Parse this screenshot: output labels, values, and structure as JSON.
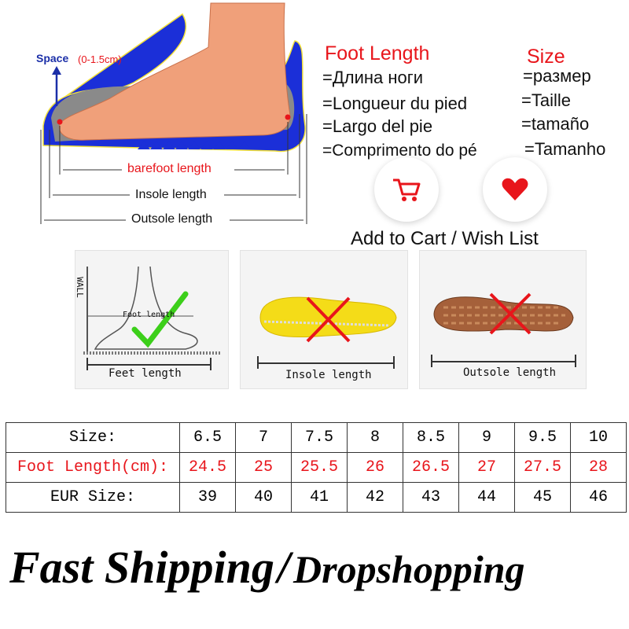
{
  "diagram": {
    "space_label": "Space",
    "space_range": "(0-1.5cm)",
    "barefoot": "barefoot length",
    "insole": "Insole length",
    "outsole": "Outsole length"
  },
  "foot_length": {
    "title": "Foot Length",
    "lines": [
      "=Длина ноги",
      "=Longueur du pied",
      "=Largo del pie",
      "=Comprimento do pé"
    ]
  },
  "size": {
    "title": "Size",
    "lines": [
      "=размер",
      "=Taille",
      "=tamaño",
      "=Tamanho"
    ]
  },
  "actions": {
    "cart_icon": "shopping-cart-icon",
    "wish_icon": "heart-icon",
    "label": "Add to Cart / Wish List"
  },
  "panels": [
    {
      "label": "Feet length",
      "inner_label": "Foot length",
      "wall": "WALL",
      "mark": "check"
    },
    {
      "label": "Insole length",
      "mark": "cross"
    },
    {
      "label": "Outsole length",
      "mark": "cross"
    }
  ],
  "table": {
    "headers": [
      "Size:",
      "Foot Length(cm):",
      "EUR Size:"
    ],
    "sizes": [
      "6.5",
      "7",
      "7.5",
      "8",
      "8.5",
      "9",
      "9.5",
      "10"
    ],
    "foot_length": [
      "24.5",
      "25",
      "25.5",
      "26",
      "26.5",
      "27",
      "27.5",
      "28"
    ],
    "eur": [
      "39",
      "40",
      "41",
      "42",
      "43",
      "44",
      "45",
      "46"
    ]
  },
  "banner": {
    "left": "Fast Shipping",
    "sep": "/",
    "right": "Dropshopping"
  },
  "colors": {
    "accent": "#e8151b",
    "shoe_blue": "#1a2fd6"
  }
}
